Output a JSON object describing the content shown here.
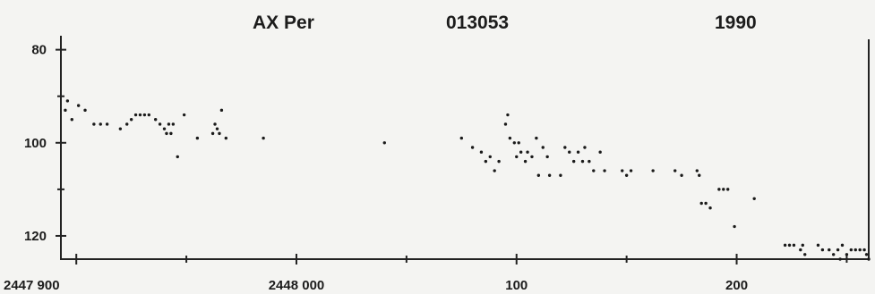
{
  "header": {
    "star": "AX Per",
    "id": "013053",
    "year": "1990"
  },
  "chart_data": {
    "type": "scatter",
    "title": "",
    "xlabel": "",
    "ylabel": "",
    "y_inverted": true,
    "xlim": [
      2447893,
      2448260
    ],
    "ylim": [
      77,
      125
    ],
    "grid": false,
    "y_ticks": [
      80,
      100,
      120
    ],
    "x_ticks": [
      {
        "value": 2447900,
        "label": "2447 900"
      },
      {
        "value": 2448000,
        "label": "2448 000"
      },
      {
        "value": 2448100,
        "label": "100"
      },
      {
        "value": 2448200,
        "label": "200"
      }
    ],
    "x_minor_ticks": [
      2447950,
      2448050,
      2448150,
      2448250
    ],
    "y_minor_ticks": [
      90,
      110
    ],
    "series": [
      {
        "points": [
          [
            2447895,
            93
          ],
          [
            2447896,
            91
          ],
          [
            2447898,
            95
          ],
          [
            2447901,
            92
          ],
          [
            2447904,
            93
          ],
          [
            2447908,
            96
          ],
          [
            2447911,
            96
          ],
          [
            2447914,
            96
          ],
          [
            2447920,
            97
          ],
          [
            2447923,
            96
          ],
          [
            2447925,
            95
          ],
          [
            2447927,
            94
          ],
          [
            2447929,
            94
          ],
          [
            2447931,
            94
          ],
          [
            2447933,
            94
          ],
          [
            2447936,
            95
          ],
          [
            2447938,
            96
          ],
          [
            2447940,
            97
          ],
          [
            2447941,
            98
          ],
          [
            2447942,
            96
          ],
          [
            2447943,
            98
          ],
          [
            2447944,
            96
          ],
          [
            2447946,
            103
          ],
          [
            2447949,
            94
          ],
          [
            2447955,
            99
          ],
          [
            2447962,
            98
          ],
          [
            2447963,
            96
          ],
          [
            2447964,
            97
          ],
          [
            2447965,
            98
          ],
          [
            2447966,
            93
          ],
          [
            2447968,
            99
          ],
          [
            2447985,
            99
          ],
          [
            2448040,
            100
          ],
          [
            2448075,
            99
          ],
          [
            2448080,
            101
          ],
          [
            2448084,
            102
          ],
          [
            2448086,
            104
          ],
          [
            2448088,
            103
          ],
          [
            2448090,
            106
          ],
          [
            2448092,
            104
          ],
          [
            2448095,
            96
          ],
          [
            2448096,
            94
          ],
          [
            2448097,
            99
          ],
          [
            2448099,
            100
          ],
          [
            2448100,
            103
          ],
          [
            2448101,
            100
          ],
          [
            2448102,
            102
          ],
          [
            2448104,
            104
          ],
          [
            2448105,
            102
          ],
          [
            2448107,
            103
          ],
          [
            2448109,
            99
          ],
          [
            2448110,
            107
          ],
          [
            2448112,
            101
          ],
          [
            2448114,
            103
          ],
          [
            2448115,
            107
          ],
          [
            2448120,
            107
          ],
          [
            2448122,
            101
          ],
          [
            2448124,
            102
          ],
          [
            2448126,
            104
          ],
          [
            2448128,
            102
          ],
          [
            2448130,
            104
          ],
          [
            2448131,
            101
          ],
          [
            2448133,
            104
          ],
          [
            2448135,
            106
          ],
          [
            2448138,
            102
          ],
          [
            2448140,
            106
          ],
          [
            2448148,
            106
          ],
          [
            2448150,
            107
          ],
          [
            2448152,
            106
          ],
          [
            2448162,
            106
          ],
          [
            2448172,
            106
          ],
          [
            2448175,
            107
          ],
          [
            2448182,
            106
          ],
          [
            2448183,
            107
          ],
          [
            2448184,
            113
          ],
          [
            2448186,
            113
          ],
          [
            2448188,
            114
          ],
          [
            2448192,
            110
          ],
          [
            2448194,
            110
          ],
          [
            2448196,
            110
          ],
          [
            2448199,
            118
          ],
          [
            2448208,
            112
          ],
          [
            2448222,
            122
          ],
          [
            2448224,
            122
          ],
          [
            2448226,
            122
          ],
          [
            2448229,
            123
          ],
          [
            2448230,
            122
          ],
          [
            2448231,
            124
          ],
          [
            2448237,
            122
          ],
          [
            2448239,
            123
          ],
          [
            2448242,
            123
          ],
          [
            2448244,
            124
          ],
          [
            2448246,
            123
          ],
          [
            2448247,
            125
          ],
          [
            2448248,
            122
          ],
          [
            2448250,
            124
          ],
          [
            2448252,
            123
          ],
          [
            2448254,
            123
          ],
          [
            2448256,
            123
          ],
          [
            2448258,
            123
          ],
          [
            2448259,
            124
          ],
          [
            2448260,
            125
          ]
        ]
      }
    ]
  }
}
